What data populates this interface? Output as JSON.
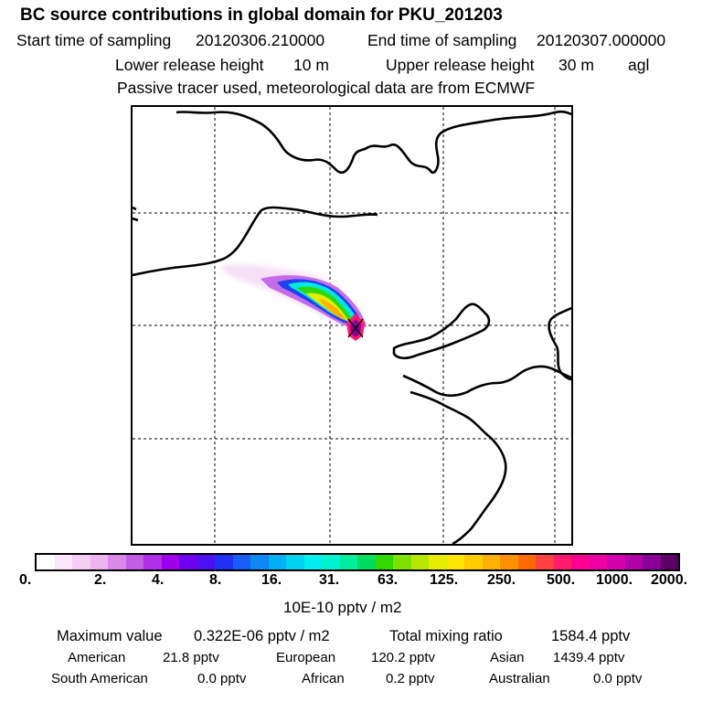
{
  "header": {
    "title": "BC  source contributions in global domain for PKU_201203",
    "start_label": "Start time of sampling",
    "start_value": "20120306.210000",
    "end_label": "End time of sampling",
    "end_value": "20120307.000000",
    "lower_label": "Lower release height",
    "lower_value": "10 m",
    "upper_label": "Upper release height",
    "upper_value": "30 m",
    "upper_ref": "agl",
    "note": "Passive tracer used, meteorological data are from ECMWF"
  },
  "colorbar": {
    "colors": [
      "#ffffff",
      "#fbe6fb",
      "#f5cdf5",
      "#eeb4f0",
      "#d98ae8",
      "#c25ee5",
      "#b030ea",
      "#9d00ee",
      "#7000f0",
      "#4d10f2",
      "#2230f5",
      "#1a5cf6",
      "#0e88f5",
      "#00b0f4",
      "#00d2f2",
      "#00eef0",
      "#00f2d0",
      "#00ec9e",
      "#00dc60",
      "#30d800",
      "#80e000",
      "#b8e800",
      "#e6ee00",
      "#ffe400",
      "#ffcc00",
      "#ffb000",
      "#ff9000",
      "#ff6a00",
      "#ff4040",
      "#ff1a6e",
      "#ff0090",
      "#f000a4",
      "#d400ac",
      "#b000a6",
      "#8a0096",
      "#5c0068"
    ],
    "ticks": [
      "0.",
      "2.",
      "4.",
      "8.",
      "16.",
      "31.",
      "63.",
      "125.",
      "250.",
      "500.",
      "1000.",
      "2000."
    ],
    "unit": "10E-10 pptv / m2"
  },
  "stats": {
    "max_label": "Maximum value",
    "max_value": "0.322E-06 pptv / m2",
    "total_label": "Total mixing ratio",
    "total_value": "1584.4 pptv",
    "regions": [
      {
        "name": "American",
        "value": "21.8 pptv"
      },
      {
        "name": "European",
        "value": "120.2 pptv"
      },
      {
        "name": "Asian",
        "value": "1439.4 pptv"
      },
      {
        "name": "South American",
        "value": "0.0 pptv"
      },
      {
        "name": "African",
        "value": "0.2 pptv"
      },
      {
        "name": "Australian",
        "value": "0.0 pptv"
      }
    ]
  }
}
